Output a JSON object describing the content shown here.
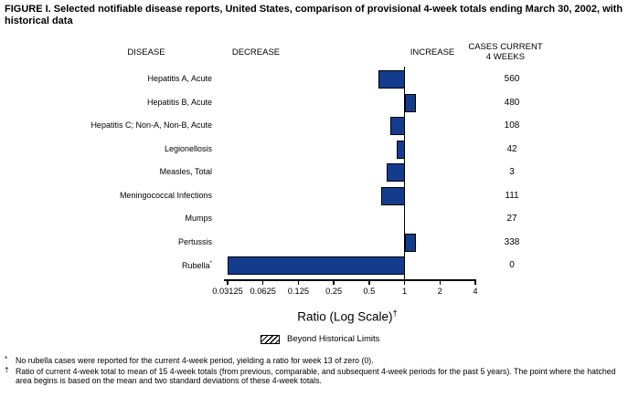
{
  "title": "FIGURE I. Selected notifiable disease reports, United States, comparison of provisional 4-week totals ending March 30, 2002, with historical data",
  "headers": {
    "disease": "DISEASE",
    "decrease": "DECREASE",
    "increase": "INCREASE",
    "cases_line1": "CASES CURRENT",
    "cases_line2": "4 WEEKS"
  },
  "chart_data": {
    "type": "bar",
    "orientation": "horizontal",
    "scale": "log2",
    "xlabel": "Ratio (Log Scale)",
    "xlabel_sup": "†",
    "axis_ticks": [
      "0.03125",
      "0.0625",
      "0.125",
      "0.25",
      "0.5",
      "1",
      "2",
      "4"
    ],
    "axis_range": [
      0.03125,
      4
    ],
    "baseline_ratio": 1,
    "bar_color": "#143c8d",
    "bar_border_color": "#000000",
    "rows": [
      {
        "label": "Hepatitis A, Acute",
        "sup": "",
        "ratio": 0.6,
        "cases": "560"
      },
      {
        "label": "Hepatitis B, Acute",
        "sup": "",
        "ratio": 1.25,
        "cases": "480"
      },
      {
        "label": "Hepatitis C; Non-A, Non-B, Acute",
        "sup": "",
        "ratio": 0.76,
        "cases": "108"
      },
      {
        "label": "Legionellosis",
        "sup": "",
        "ratio": 0.86,
        "cases": "42"
      },
      {
        "label": "Measles, Total",
        "sup": "",
        "ratio": 0.7,
        "cases": "3"
      },
      {
        "label": "Meningococcal Infections",
        "sup": "",
        "ratio": 0.63,
        "cases": "111"
      },
      {
        "label": "Mumps",
        "sup": "",
        "ratio": 1.0,
        "cases": "27"
      },
      {
        "label": "Pertussis",
        "sup": "",
        "ratio": 1.24,
        "cases": "338"
      },
      {
        "label": "Rubella",
        "sup": "*",
        "ratio": 0,
        "cases": "0"
      }
    ]
  },
  "legend": {
    "swatch": "hatched-pattern",
    "label": "Beyond Historical Limits"
  },
  "footnotes": [
    {
      "marker": "*",
      "text": "No rubella cases were reported for the current 4-week period, yielding a ratio for week 13 of zero (0)."
    },
    {
      "marker": "†",
      "text": "Ratio of current 4-week total to mean of 15 4-week totals (from previous, comparable, and subsequent 4-week periods for the past 5 years). The point where the hatched area begins is based on the mean and two standard deviations of these 4-week totals."
    }
  ]
}
